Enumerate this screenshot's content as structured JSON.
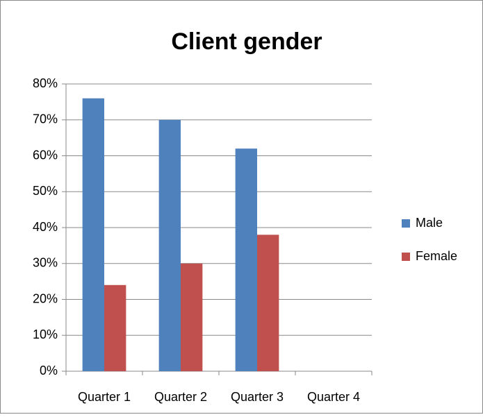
{
  "chart_data": {
    "type": "bar",
    "title": "Client gender",
    "categories": [
      "Quarter 1",
      "Quarter 2",
      "Quarter 3",
      "Quarter 4"
    ],
    "series": [
      {
        "name": "Male",
        "color": "#4f81bd",
        "values": [
          76,
          70,
          62,
          null
        ]
      },
      {
        "name": "Female",
        "color": "#c0504d",
        "values": [
          24,
          30,
          38,
          null
        ]
      }
    ],
    "ylim": [
      0,
      80
    ],
    "yticks": [
      {
        "value": 0,
        "label": "0%"
      },
      {
        "value": 10,
        "label": "10%"
      },
      {
        "value": 20,
        "label": "20%"
      },
      {
        "value": 30,
        "label": "30%"
      },
      {
        "value": 40,
        "label": "40%"
      },
      {
        "value": 50,
        "label": "50%"
      },
      {
        "value": 60,
        "label": "60%"
      },
      {
        "value": 70,
        "label": "70%"
      },
      {
        "value": 80,
        "label": "80%"
      }
    ],
    "grid": true,
    "legend": "right"
  }
}
